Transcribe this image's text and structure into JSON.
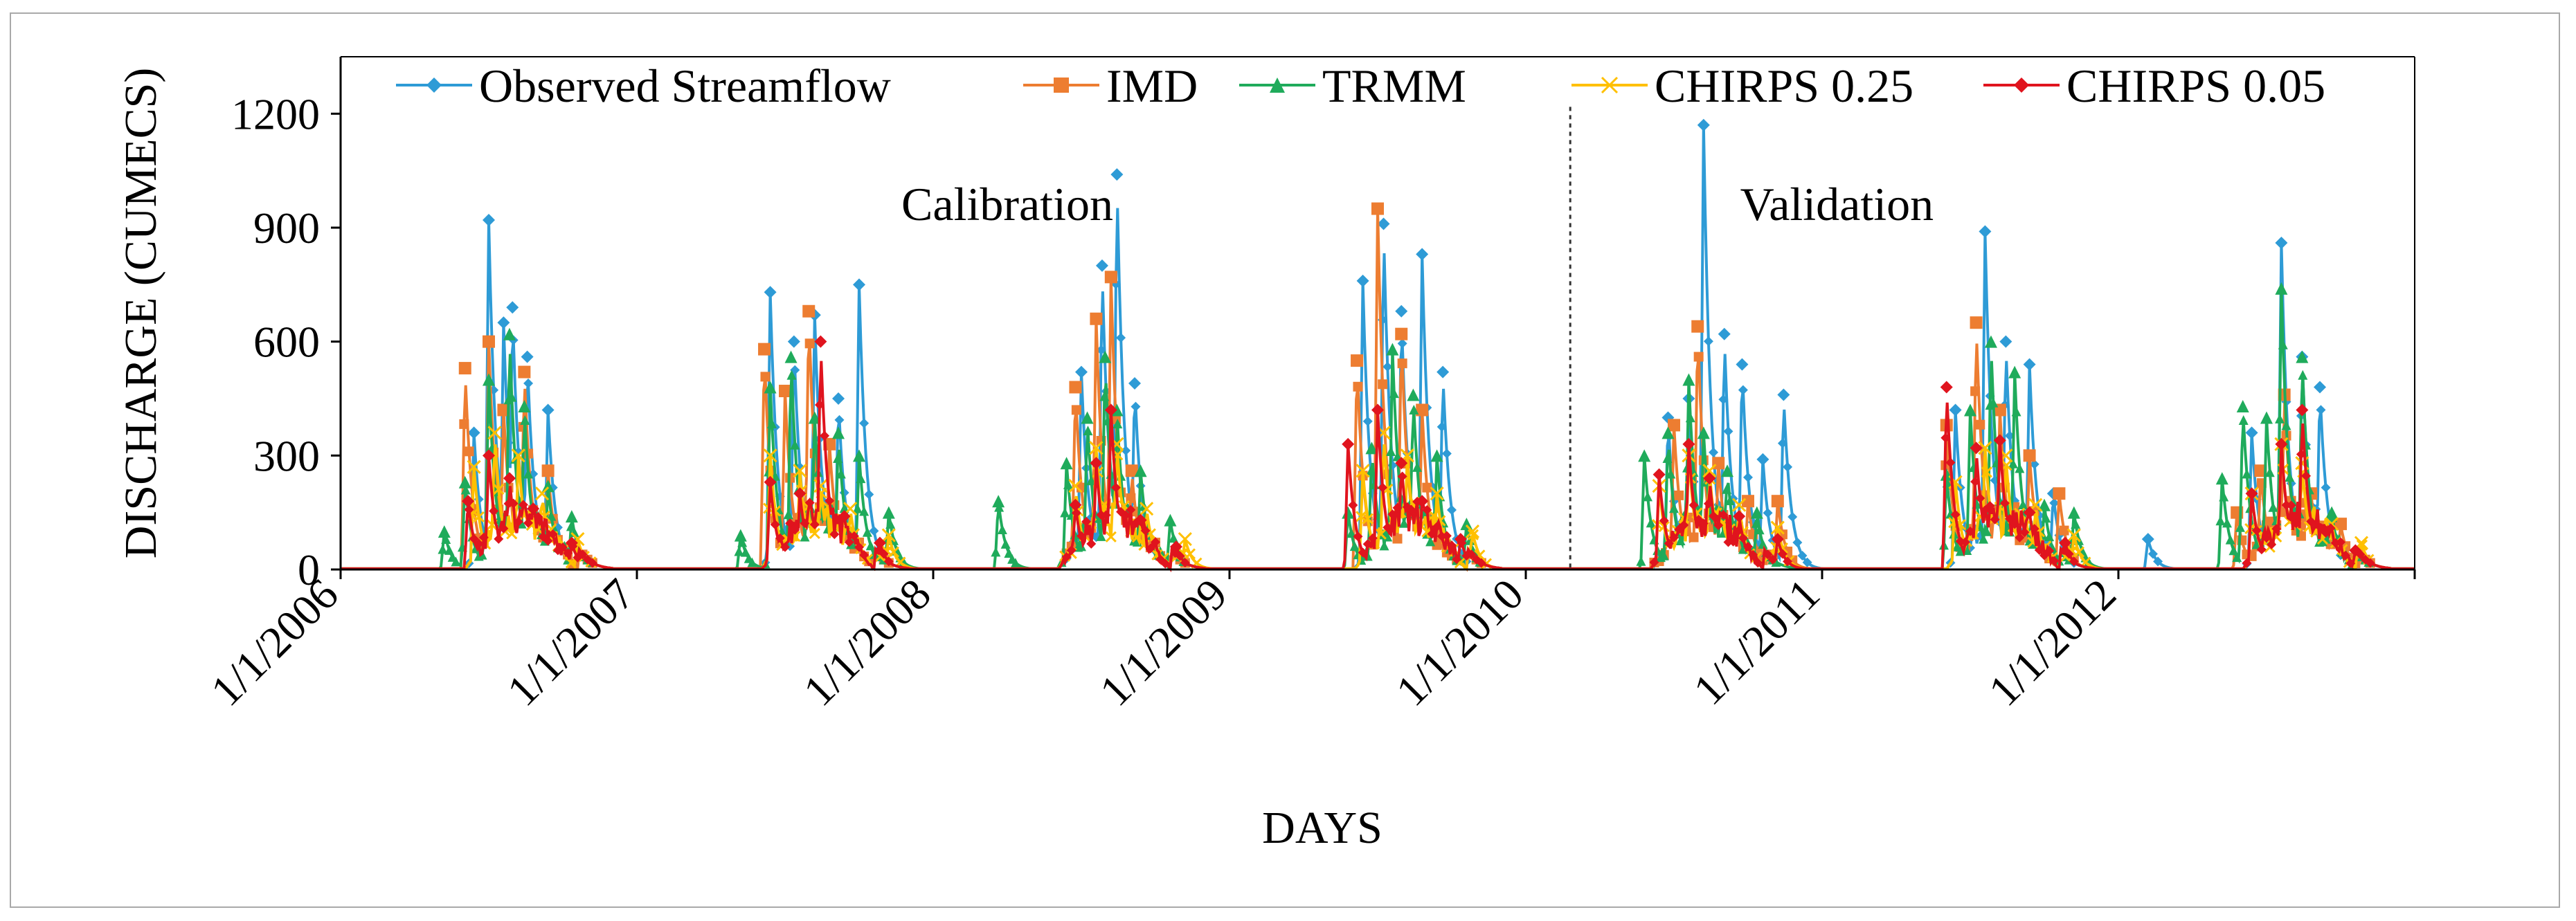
{
  "chart_data": {
    "type": "line",
    "title": "",
    "xlabel": "DAYS",
    "ylabel": "DISCHARGE (CUMECS)",
    "ylim": [
      0,
      1350
    ],
    "yticks": [
      0,
      300,
      600,
      900,
      1200
    ],
    "xlim": [
      "1/1/2006",
      "12/31/2012"
    ],
    "xtick_labels": [
      "1/1/2006",
      "1/1/2007",
      "1/1/2008",
      "1/1/2009",
      "1/1/2010",
      "1/1/2011",
      "1/1/2012"
    ],
    "grid": false,
    "legend_position": "top",
    "annotations": [
      {
        "text": "Calibration",
        "x_year": 2008.25,
        "y": 960
      },
      {
        "text": "Validation",
        "x_year": 2011.05,
        "y": 960
      }
    ],
    "divider_x_year": 2010.15,
    "series": [
      {
        "name": "Observed Streamflow",
        "color": "#2e9bd6",
        "marker": "diamond",
        "peaks": [
          [
            2006.45,
            360
          ],
          [
            2006.5,
            920
          ],
          [
            2006.55,
            650
          ],
          [
            2006.58,
            690
          ],
          [
            2006.63,
            560
          ],
          [
            2006.7,
            420
          ],
          [
            2007.45,
            730
          ],
          [
            2007.53,
            600
          ],
          [
            2007.6,
            670
          ],
          [
            2007.68,
            450
          ],
          [
            2007.75,
            750
          ],
          [
            2008.5,
            520
          ],
          [
            2008.57,
            800
          ],
          [
            2008.62,
            1040
          ],
          [
            2008.68,
            490
          ],
          [
            2009.45,
            760
          ],
          [
            2009.52,
            910
          ],
          [
            2009.58,
            680
          ],
          [
            2009.65,
            830
          ],
          [
            2009.72,
            520
          ],
          [
            2010.48,
            400
          ],
          [
            2010.55,
            450
          ],
          [
            2010.6,
            1170
          ],
          [
            2010.67,
            620
          ],
          [
            2010.73,
            540
          ],
          [
            2010.8,
            290
          ],
          [
            2010.87,
            460
          ],
          [
            2011.45,
            420
          ],
          [
            2011.55,
            890
          ],
          [
            2011.62,
            600
          ],
          [
            2011.7,
            540
          ],
          [
            2011.78,
            200
          ],
          [
            2012.1,
            80
          ],
          [
            2012.45,
            360
          ],
          [
            2012.55,
            860
          ],
          [
            2012.62,
            560
          ],
          [
            2012.68,
            480
          ]
        ]
      },
      {
        "name": "IMD",
        "color": "#ed7d31",
        "marker": "square",
        "peaks": [
          [
            2006.42,
            530
          ],
          [
            2006.5,
            600
          ],
          [
            2006.55,
            420
          ],
          [
            2006.62,
            520
          ],
          [
            2006.7,
            260
          ],
          [
            2007.43,
            580
          ],
          [
            2007.5,
            470
          ],
          [
            2007.58,
            680
          ],
          [
            2007.65,
            330
          ],
          [
            2008.48,
            480
          ],
          [
            2008.55,
            660
          ],
          [
            2008.6,
            770
          ],
          [
            2008.67,
            260
          ],
          [
            2009.43,
            550
          ],
          [
            2009.5,
            950
          ],
          [
            2009.58,
            620
          ],
          [
            2009.65,
            420
          ],
          [
            2010.5,
            380
          ],
          [
            2010.58,
            640
          ],
          [
            2010.65,
            280
          ],
          [
            2010.75,
            180
          ],
          [
            2010.85,
            180
          ],
          [
            2011.42,
            380
          ],
          [
            2011.52,
            650
          ],
          [
            2011.6,
            420
          ],
          [
            2011.7,
            300
          ],
          [
            2011.8,
            200
          ],
          [
            2012.4,
            150
          ],
          [
            2012.48,
            260
          ],
          [
            2012.56,
            460
          ],
          [
            2012.65,
            200
          ],
          [
            2012.75,
            120
          ]
        ]
      },
      {
        "name": "TRMM",
        "color": "#1fab5b",
        "marker": "triangle",
        "peaks": [
          [
            2006.35,
            100
          ],
          [
            2006.42,
            230
          ],
          [
            2006.5,
            500
          ],
          [
            2006.57,
            620
          ],
          [
            2006.62,
            430
          ],
          [
            2006.7,
            220
          ],
          [
            2006.78,
            140
          ],
          [
            2007.35,
            90
          ],
          [
            2007.45,
            480
          ],
          [
            2007.52,
            560
          ],
          [
            2007.6,
            400
          ],
          [
            2007.68,
            360
          ],
          [
            2007.75,
            300
          ],
          [
            2007.85,
            150
          ],
          [
            2008.22,
            180
          ],
          [
            2008.45,
            280
          ],
          [
            2008.52,
            400
          ],
          [
            2008.58,
            560
          ],
          [
            2008.62,
            420
          ],
          [
            2008.7,
            260
          ],
          [
            2008.8,
            130
          ],
          [
            2009.4,
            150
          ],
          [
            2009.48,
            320
          ],
          [
            2009.55,
            580
          ],
          [
            2009.62,
            460
          ],
          [
            2009.7,
            300
          ],
          [
            2009.8,
            120
          ],
          [
            2010.4,
            300
          ],
          [
            2010.48,
            360
          ],
          [
            2010.55,
            500
          ],
          [
            2010.6,
            360
          ],
          [
            2010.68,
            260
          ],
          [
            2010.78,
            150
          ],
          [
            2011.42,
            250
          ],
          [
            2011.5,
            420
          ],
          [
            2011.57,
            600
          ],
          [
            2011.65,
            520
          ],
          [
            2011.75,
            170
          ],
          [
            2011.85,
            150
          ],
          [
            2012.35,
            240
          ],
          [
            2012.42,
            430
          ],
          [
            2012.5,
            400
          ],
          [
            2012.55,
            740
          ],
          [
            2012.62,
            560
          ],
          [
            2012.72,
            150
          ]
        ]
      },
      {
        "name": "CHIRPS 0.25",
        "color": "#ffc000",
        "marker": "x",
        "peaks": [
          [
            2006.45,
            270
          ],
          [
            2006.52,
            360
          ],
          [
            2006.6,
            300
          ],
          [
            2006.68,
            200
          ],
          [
            2006.8,
            80
          ],
          [
            2007.45,
            300
          ],
          [
            2007.55,
            260
          ],
          [
            2007.62,
            220
          ],
          [
            2007.72,
            160
          ],
          [
            2007.85,
            90
          ],
          [
            2008.48,
            220
          ],
          [
            2008.55,
            320
          ],
          [
            2008.62,
            330
          ],
          [
            2008.72,
            160
          ],
          [
            2008.85,
            80
          ],
          [
            2009.45,
            260
          ],
          [
            2009.52,
            360
          ],
          [
            2009.6,
            300
          ],
          [
            2009.7,
            200
          ],
          [
            2009.82,
            100
          ],
          [
            2010.45,
            220
          ],
          [
            2010.55,
            300
          ],
          [
            2010.62,
            260
          ],
          [
            2010.72,
            170
          ],
          [
            2010.85,
            110
          ],
          [
            2011.45,
            230
          ],
          [
            2011.55,
            320
          ],
          [
            2011.62,
            300
          ],
          [
            2011.72,
            170
          ],
          [
            2011.85,
            90
          ],
          [
            2012.45,
            200
          ],
          [
            2012.55,
            330
          ],
          [
            2012.62,
            280
          ],
          [
            2012.72,
            120
          ],
          [
            2012.82,
            70
          ]
        ]
      },
      {
        "name": "CHIRPS 0.05",
        "color": "#e0141e",
        "marker": "diamond",
        "peaks": [
          [
            2006.43,
            180
          ],
          [
            2006.5,
            300
          ],
          [
            2006.57,
            240
          ],
          [
            2006.65,
            160
          ],
          [
            2006.78,
            70
          ],
          [
            2007.45,
            230
          ],
          [
            2007.55,
            200
          ],
          [
            2007.62,
            600
          ],
          [
            2007.7,
            140
          ],
          [
            2007.82,
            70
          ],
          [
            2008.48,
            170
          ],
          [
            2008.55,
            280
          ],
          [
            2008.6,
            420
          ],
          [
            2008.7,
            130
          ],
          [
            2008.82,
            60
          ],
          [
            2009.4,
            330
          ],
          [
            2009.5,
            420
          ],
          [
            2009.58,
            280
          ],
          [
            2009.65,
            180
          ],
          [
            2009.78,
            80
          ],
          [
            2010.45,
            250
          ],
          [
            2010.55,
            330
          ],
          [
            2010.62,
            240
          ],
          [
            2010.72,
            140
          ],
          [
            2010.85,
            80
          ],
          [
            2011.42,
            480
          ],
          [
            2011.52,
            320
          ],
          [
            2011.6,
            340
          ],
          [
            2011.7,
            150
          ],
          [
            2011.82,
            70
          ],
          [
            2012.45,
            200
          ],
          [
            2012.55,
            330
          ],
          [
            2012.62,
            420
          ],
          [
            2012.7,
            100
          ],
          [
            2012.8,
            50
          ]
        ]
      }
    ]
  }
}
